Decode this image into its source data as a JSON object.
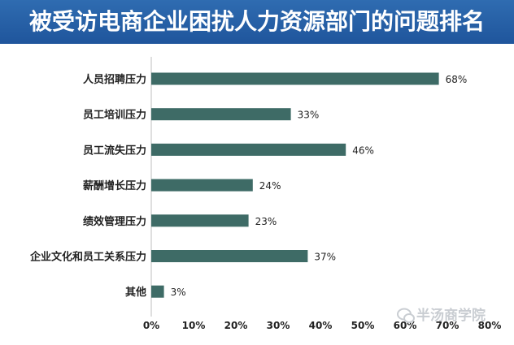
{
  "header": {
    "title": "被受访电商企业困扰人力资源部门的问题排名"
  },
  "watermark": {
    "text": "半汤商学院",
    "icon": "wechat-logo-icon"
  },
  "colors": {
    "title_bg": "#2a63aa",
    "bar": "#3e6b66",
    "text": "#222222",
    "grid": "#d9d9d9"
  },
  "chart_data": {
    "type": "bar",
    "orientation": "horizontal",
    "title": "",
    "xlabel": "",
    "ylabel": "",
    "categories": [
      "人员招聘压力",
      "员工培训压力",
      "员工流失压力",
      "薪酬增长压力",
      "绩效管理压力",
      "企业文化和员工关系压力",
      "其他"
    ],
    "values": [
      68,
      33,
      46,
      24,
      23,
      37,
      3
    ],
    "value_labels": [
      "68%",
      "33%",
      "46%",
      "24%",
      "23%",
      "37%",
      "3%"
    ],
    "xlim": [
      0,
      80
    ],
    "xticks": [
      0,
      10,
      20,
      30,
      40,
      50,
      60,
      70,
      80
    ],
    "xtick_labels": [
      "0%",
      "10%",
      "20%",
      "30%",
      "40%",
      "50%",
      "60%",
      "70%",
      "80%"
    ],
    "grid": false,
    "legend": "none"
  }
}
